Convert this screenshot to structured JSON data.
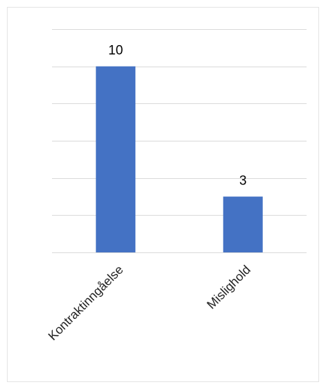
{
  "chart_data": {
    "type": "bar",
    "categories": [
      "Kontraktinngåelse",
      "Mislighold"
    ],
    "values": [
      10,
      3
    ],
    "ylim": [
      0,
      12
    ],
    "grid": true,
    "colors": {
      "bar": "#4472c4",
      "grid": "#d9d9d9"
    }
  }
}
